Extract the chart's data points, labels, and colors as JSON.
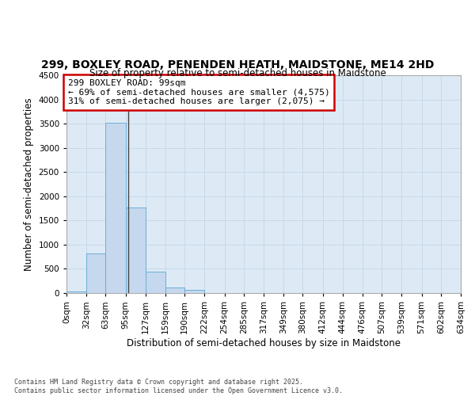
{
  "title_line1": "299, BOXLEY ROAD, PENENDEN HEATH, MAIDSTONE, ME14 2HD",
  "title_line2": "Size of property relative to semi-detached houses in Maidstone",
  "xlabel": "Distribution of semi-detached houses by size in Maidstone",
  "ylabel": "Number of semi-detached properties",
  "footer_line1": "Contains HM Land Registry data © Crown copyright and database right 2025.",
  "footer_line2": "Contains public sector information licensed under the Open Government Licence v3.0.",
  "annotation_line1": "299 BOXLEY ROAD: 99sqm",
  "annotation_line2": "← 69% of semi-detached houses are smaller (4,575)",
  "annotation_line3": "31% of semi-detached houses are larger (2,075) →",
  "property_size_sqm": 99,
  "bin_edges": [
    0,
    32,
    63,
    95,
    127,
    159,
    190,
    222,
    254,
    285,
    317,
    349,
    380,
    412,
    444,
    476,
    507,
    539,
    571,
    602,
    634
  ],
  "bin_labels": [
    "0sqm",
    "32sqm",
    "63sqm",
    "95sqm",
    "127sqm",
    "159sqm",
    "190sqm",
    "222sqm",
    "254sqm",
    "285sqm",
    "317sqm",
    "349sqm",
    "380sqm",
    "412sqm",
    "444sqm",
    "476sqm",
    "507sqm",
    "539sqm",
    "571sqm",
    "602sqm",
    "634sqm"
  ],
  "bar_values": [
    25,
    820,
    3520,
    1760,
    450,
    110,
    65,
    0,
    0,
    0,
    0,
    0,
    0,
    0,
    0,
    0,
    0,
    0,
    0,
    0
  ],
  "bar_color": "#c5d8ee",
  "bar_edge_color": "#6baed6",
  "highlight_line_color": "#444444",
  "ylim": [
    0,
    4500
  ],
  "yticks": [
    0,
    500,
    1000,
    1500,
    2000,
    2500,
    3000,
    3500,
    4000,
    4500
  ],
  "grid_color": "#c8d8e8",
  "background_color": "#ddeaf6",
  "annotation_box_facecolor": "#ffffff",
  "annotation_box_edgecolor": "#cc0000",
  "title_fontsize": 10,
  "subtitle_fontsize": 9,
  "axis_label_fontsize": 8.5,
  "tick_fontsize": 7.5,
  "annotation_fontsize": 8
}
